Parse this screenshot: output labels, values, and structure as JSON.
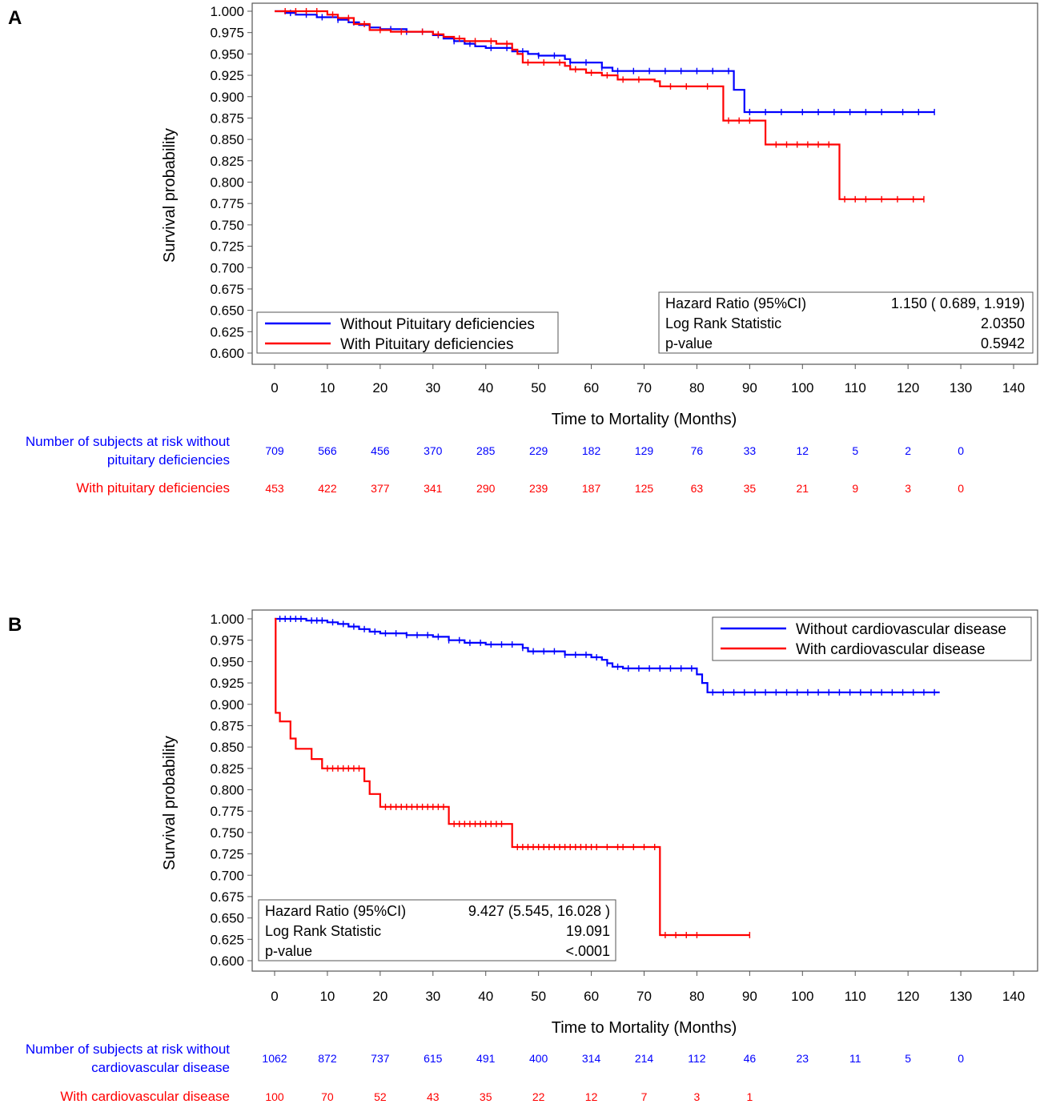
{
  "chart_data": [
    {
      "panel_label": "A",
      "type": "line",
      "subtype": "kaplan-meier",
      "ylabel": "Survival probability",
      "xlabel": "Time to Mortality (Months)",
      "ylim": [
        0.6,
        1.0
      ],
      "xlim": [
        0,
        140
      ],
      "yticks": [
        "1.000",
        "0.975",
        "0.950",
        "0.925",
        "0.900",
        "0.875",
        "0.850",
        "0.825",
        "0.800",
        "0.775",
        "0.750",
        "0.725",
        "0.700",
        "0.675",
        "0.650",
        "0.625",
        "0.600"
      ],
      "xticks": [
        "0",
        "10",
        "20",
        "30",
        "40",
        "50",
        "60",
        "70",
        "80",
        "90",
        "100",
        "110",
        "120",
        "130",
        "140"
      ],
      "legend": [
        "Without Pituitary deficiencies",
        "With Pituitary deficiencies"
      ],
      "stats": {
        "hr_label": "Hazard Ratio (95%CI)",
        "hr_value": "1.150 ( 0.689,  1.919)",
        "lr_label": "Log Rank Statistic",
        "lr_value": "2.0350",
        "p_label": "p-value",
        "p_value": "0.5942"
      },
      "series": [
        {
          "name": "Without Pituitary deficiencies",
          "color": "#0000ff",
          "steps": [
            [
              0,
              1.0
            ],
            [
              2,
              0.998
            ],
            [
              4,
              0.996
            ],
            [
              8,
              0.993
            ],
            [
              12,
              0.99
            ],
            [
              14,
              0.987
            ],
            [
              16,
              0.984
            ],
            [
              18,
              0.981
            ],
            [
              20,
              0.979
            ],
            [
              25,
              0.976
            ],
            [
              30,
              0.972
            ],
            [
              32,
              0.968
            ],
            [
              34,
              0.965
            ],
            [
              36,
              0.962
            ],
            [
              38,
              0.959
            ],
            [
              40,
              0.957
            ],
            [
              45,
              0.953
            ],
            [
              48,
              0.95
            ],
            [
              50,
              0.948
            ],
            [
              55,
              0.944
            ],
            [
              56,
              0.94
            ],
            [
              62,
              0.934
            ],
            [
              64,
              0.93
            ],
            [
              87,
              0.908
            ],
            [
              89,
              0.882
            ],
            [
              125,
              0.882
            ]
          ],
          "censor": [
            3,
            6,
            9,
            12,
            15,
            18,
            22,
            25,
            28,
            31,
            34,
            37,
            41,
            44,
            47,
            50,
            53,
            56,
            59,
            62,
            65,
            68,
            71,
            74,
            77,
            80,
            83,
            86,
            90,
            93,
            96,
            100,
            103,
            106,
            109,
            112,
            115,
            119,
            122,
            125
          ]
        },
        {
          "name": "With Pituitary deficiencies",
          "color": "#ff0000",
          "steps": [
            [
              0,
              1.0
            ],
            [
              10,
              0.996
            ],
            [
              12,
              0.992
            ],
            [
              15,
              0.985
            ],
            [
              18,
              0.978
            ],
            [
              22,
              0.976
            ],
            [
              30,
              0.973
            ],
            [
              32,
              0.97
            ],
            [
              34,
              0.968
            ],
            [
              36,
              0.965
            ],
            [
              42,
              0.962
            ],
            [
              45,
              0.955
            ],
            [
              46,
              0.95
            ],
            [
              47,
              0.94
            ],
            [
              55,
              0.936
            ],
            [
              56,
              0.932
            ],
            [
              59,
              0.928
            ],
            [
              62,
              0.925
            ],
            [
              65,
              0.92
            ],
            [
              72,
              0.918
            ],
            [
              73,
              0.912
            ],
            [
              85,
              0.872
            ],
            [
              93,
              0.844
            ],
            [
              107,
              0.78
            ],
            [
              123,
              0.78
            ]
          ],
          "censor": [
            2,
            4,
            6,
            8,
            11,
            14,
            17,
            20,
            24,
            28,
            31,
            35,
            38,
            41,
            44,
            48,
            51,
            54,
            57,
            60,
            63,
            66,
            69,
            75,
            78,
            82,
            86,
            88,
            90,
            95,
            97,
            99,
            101,
            103,
            105,
            108,
            110,
            112,
            115,
            118,
            121,
            123
          ]
        }
      ],
      "risk_table": {
        "times": [
          0,
          10,
          20,
          30,
          40,
          50,
          60,
          70,
          80,
          90,
          100,
          110,
          120,
          130
        ],
        "rows": [
          {
            "label_line1": "Number of subjects at risk without",
            "label_line2": "pituitary deficiencies",
            "color": "#0000ff",
            "values": [
              "709",
              "566",
              "456",
              "370",
              "285",
              "229",
              "182",
              "129",
              "76",
              "33",
              "12",
              "5",
              "2",
              "0"
            ]
          },
          {
            "label_line1": "",
            "label_line2": "With pituitary deficiencies",
            "color": "#ff0000",
            "values": [
              "453",
              "422",
              "377",
              "341",
              "290",
              "239",
              "187",
              "125",
              "63",
              "35",
              "21",
              "9",
              "3",
              "0"
            ]
          }
        ]
      }
    },
    {
      "panel_label": "B",
      "type": "line",
      "subtype": "kaplan-meier",
      "ylabel": "Survival probability",
      "xlabel": "Time to Mortality (Months)",
      "ylim": [
        0.6,
        1.0
      ],
      "xlim": [
        0,
        140
      ],
      "yticks": [
        "1.000",
        "0.975",
        "0.950",
        "0.925",
        "0.900",
        "0.875",
        "0.850",
        "0.825",
        "0.800",
        "0.775",
        "0.750",
        "0.725",
        "0.700",
        "0.675",
        "0.650",
        "0.625",
        "0.600"
      ],
      "xticks": [
        "0",
        "10",
        "20",
        "30",
        "40",
        "50",
        "60",
        "70",
        "80",
        "90",
        "100",
        "110",
        "120",
        "130",
        "140"
      ],
      "legend": [
        "Without cardiovascular disease",
        "With cardiovascular disease"
      ],
      "stats": {
        "hr_label": "Hazard Ratio (95%CI)",
        "hr_value": "9.427  (5.545, 16.028 )",
        "lr_label": "Log Rank Statistic",
        "lr_value": "19.091",
        "p_label": "p-value",
        "p_value": "<.0001"
      },
      "series": [
        {
          "name": "Without cardiovascular disease",
          "color": "#0000ff",
          "steps": [
            [
              0,
              1.0
            ],
            [
              6,
              0.998
            ],
            [
              10,
              0.996
            ],
            [
              12,
              0.994
            ],
            [
              14,
              0.991
            ],
            [
              16,
              0.988
            ],
            [
              18,
              0.985
            ],
            [
              20,
              0.983
            ],
            [
              25,
              0.981
            ],
            [
              30,
              0.979
            ],
            [
              33,
              0.975
            ],
            [
              36,
              0.972
            ],
            [
              40,
              0.97
            ],
            [
              47,
              0.966
            ],
            [
              48,
              0.962
            ],
            [
              55,
              0.958
            ],
            [
              60,
              0.955
            ],
            [
              62,
              0.952
            ],
            [
              63,
              0.948
            ],
            [
              64,
              0.944
            ],
            [
              66,
              0.942
            ],
            [
              80,
              0.935
            ],
            [
              81,
              0.925
            ],
            [
              82,
              0.914
            ],
            [
              126,
              0.914
            ]
          ],
          "censor": [
            1,
            2,
            3,
            4,
            5,
            7,
            8,
            9,
            11,
            13,
            15,
            17,
            19,
            21,
            23,
            25,
            27,
            29,
            31,
            33,
            35,
            37,
            39,
            41,
            43,
            45,
            47,
            49,
            51,
            53,
            55,
            57,
            59,
            61,
            63,
            65,
            67,
            69,
            71,
            73,
            75,
            77,
            79,
            83,
            85,
            87,
            89,
            91,
            93,
            95,
            97,
            99,
            101,
            103,
            105,
            107,
            109,
            111,
            113,
            115,
            117,
            119,
            121,
            123,
            125
          ]
        },
        {
          "name": "With cardiovascular disease",
          "color": "#ff0000",
          "steps": [
            [
              0,
              1.0
            ],
            [
              0.2,
              0.89
            ],
            [
              1,
              0.88
            ],
            [
              3,
              0.86
            ],
            [
              4,
              0.848
            ],
            [
              7,
              0.836
            ],
            [
              9,
              0.825
            ],
            [
              17,
              0.81
            ],
            [
              18,
              0.795
            ],
            [
              20,
              0.78
            ],
            [
              33,
              0.76
            ],
            [
              45,
              0.733
            ],
            [
              73,
              0.63
            ],
            [
              90,
              0.63
            ]
          ],
          "censor": [
            10,
            11,
            12,
            13,
            14,
            15,
            16,
            21,
            22,
            23,
            24,
            25,
            26,
            27,
            28,
            29,
            30,
            31,
            32,
            34,
            35,
            36,
            37,
            38,
            39,
            40,
            41,
            42,
            43,
            46,
            47,
            48,
            49,
            50,
            51,
            52,
            53,
            54,
            55,
            56,
            57,
            58,
            59,
            60,
            61,
            63,
            65,
            66,
            68,
            70,
            72,
            74,
            76,
            78,
            80,
            90
          ]
        }
      ],
      "risk_table": {
        "times": [
          0,
          10,
          20,
          30,
          40,
          50,
          60,
          70,
          80,
          90,
          100,
          110,
          120,
          130
        ],
        "rows": [
          {
            "label_line1": "Number of subjects at risk without",
            "label_line2": "cardiovascular disease",
            "color": "#0000ff",
            "values": [
              "1062",
              "872",
              "737",
              "615",
              "491",
              "400",
              "314",
              "214",
              "112",
              "46",
              "23",
              "11",
              "5",
              "0"
            ]
          },
          {
            "label_line1": "",
            "label_line2": "With cardiovascular disease",
            "color": "#ff0000",
            "values": [
              "100",
              "70",
              "52",
              "43",
              "35",
              "22",
              "12",
              "7",
              "3",
              "1",
              "",
              "",
              "",
              ""
            ]
          }
        ]
      }
    }
  ]
}
